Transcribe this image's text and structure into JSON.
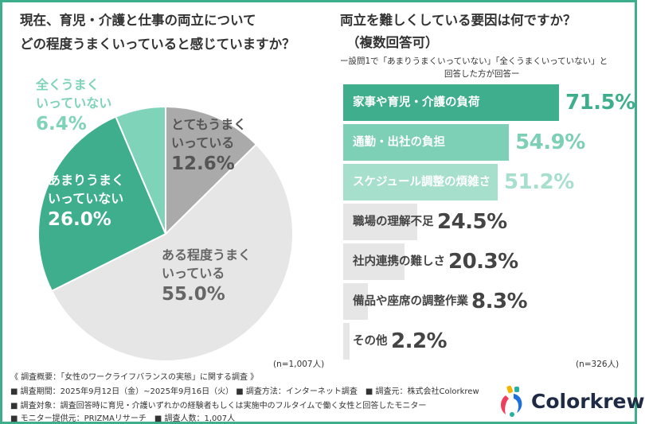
{
  "left": {
    "title_line1": "現在、育児・介護と仕事の両立について",
    "title_line2": "どの程度うまくいっていると感じていますか？",
    "n": "(n=1,007人)"
  },
  "right": {
    "title_line1": "両立を難しくしている要因は何ですか？",
    "title_line2": "（複数回答可）",
    "subtitle_line1": "ー設問1で「あまりうまくいっていない」「全くうまくいっていない」と",
    "subtitle_line2": "回答した方が回答ー",
    "n": "(n=326人)"
  },
  "chart_data": [
    {
      "type": "pie",
      "start": "12 o'clock, clockwise",
      "slices": [
        {
          "label_line1": "とてもうまく",
          "label_line2": "いっている",
          "value": 12.6,
          "value_label": "12.6%",
          "color": "#aaaaaa",
          "text_color": "#555555"
        },
        {
          "label_line1": "ある程度うまく",
          "label_line2": "いっている",
          "value": 55.0,
          "value_label": "55.0%",
          "color": "#e6e6e6",
          "text_color": "#666666"
        },
        {
          "label_line1": "あまりうまく",
          "label_line2": "いっていない",
          "value": 26.0,
          "value_label": "26.0%",
          "color": "#3fae8c",
          "text_color": "#ffffff"
        },
        {
          "label_line1": "全くうまく",
          "label_line2": "いっていない",
          "value": 6.4,
          "value_label": "6.4%",
          "color": "#7fd3b8",
          "text_color": "#7fd3b8"
        }
      ]
    },
    {
      "type": "bar",
      "orientation": "horizontal",
      "categories": [
        "家事や育児・介護の負荷",
        "通勤・出社の負担",
        "スケジュール調整の煩雑さ",
        "職場の理解不足",
        "社内連携の難しさ",
        "備品や座席の調整作業",
        "その他"
      ],
      "values": [
        71.5,
        54.9,
        51.2,
        24.5,
        20.3,
        8.3,
        2.2
      ],
      "value_labels": [
        "71.5%",
        "54.9%",
        "51.2%",
        "24.5%",
        "20.3%",
        "8.3%",
        "2.2%"
      ],
      "colors": [
        "#3fae8c",
        "#7dcfb5",
        "#a6dfcc",
        "#e6e6e6",
        "#e6e6e6",
        "#e6e6e6",
        "#e6e6e6"
      ],
      "value_colors": [
        "#3fae8c",
        "#7dcfb5",
        "#a6dfcc",
        "#444444",
        "#444444",
        "#444444",
        "#444444"
      ],
      "label_colors": [
        "#ffffff",
        "#ffffff",
        "#ffffff",
        "#444444",
        "#444444",
        "#444444",
        "#444444"
      ]
    }
  ],
  "footer": {
    "line1": "《 調査概要：「女性のワークライフバランスの実態」に関する調査 》",
    "line2": "■ 調査期間：2025年9月12日（金）~2025年9月16日（火） ■ 調査方法：インターネット調査　■ 調査元：株式会社Colorkrew",
    "line3": "■ 調査対象：調査回答時に育児・介護いずれかの経験者もしくは実施中のフルタイムで働く女性と回答したモニター",
    "line4": "■ モニター提供元：PRIZMAリサーチ　■ 調査人数：1,007人"
  },
  "logo": {
    "text": "Colorkrew"
  }
}
